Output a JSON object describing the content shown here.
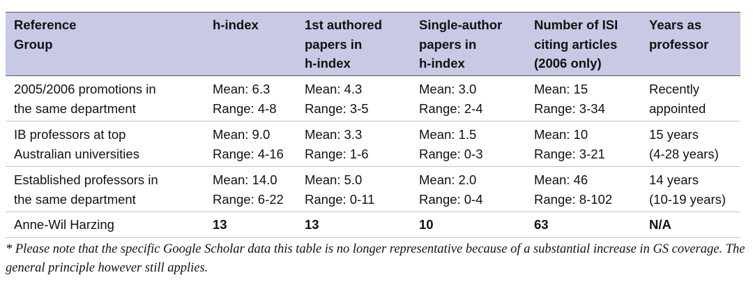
{
  "table": {
    "header": [
      [
        "Reference",
        "Group"
      ],
      [
        "h-index"
      ],
      [
        "1st authored",
        "papers in",
        "h-index"
      ],
      [
        "Single-author",
        "papers in",
        "h-index"
      ],
      [
        "Number of ISI",
        "citing articles",
        "(2006 only)"
      ],
      [
        "Years as",
        "professor"
      ]
    ],
    "rows": [
      [
        [
          "2005/2006 promotions in",
          "the same department"
        ],
        [
          "Mean: 6.3",
          "Range: 4-8"
        ],
        [
          "Mean: 4.3",
          "Range: 3-5"
        ],
        [
          "Mean: 3.0",
          "Range: 2-4"
        ],
        [
          "Mean: 15",
          "Range: 3-34"
        ],
        [
          "Recently",
          "appointed"
        ]
      ],
      [
        [
          "IB professors at top",
          "Australian universities"
        ],
        [
          "Mean: 9.0",
          "Range: 4-16"
        ],
        [
          "Mean: 3.3",
          "Range: 1-6"
        ],
        [
          "Mean: 1.5",
          "Range: 0-3"
        ],
        [
          "Mean: 10",
          "Range: 3-21"
        ],
        [
          "15 years",
          "(4-28 years)"
        ]
      ],
      [
        [
          "Established professors in",
          "the same department"
        ],
        [
          "Mean: 14.0",
          "Range: 6-22"
        ],
        [
          "Mean: 5.0",
          "Range: 0-11"
        ],
        [
          "Mean: 2.0",
          "Range: 0-4"
        ],
        [
          "Mean: 46",
          "Range: 8-102"
        ],
        [
          "14 years",
          "(10-19 years)"
        ]
      ],
      [
        [
          "Anne-Wil Harzing"
        ],
        [
          "13"
        ],
        [
          "13"
        ],
        [
          "10"
        ],
        [
          "63"
        ],
        [
          "N/A"
        ]
      ]
    ]
  },
  "footnote": "* Please note that the specific Google Scholar data this table is no longer representative because of a substantial increase in GS coverage. The general principle however still applies."
}
